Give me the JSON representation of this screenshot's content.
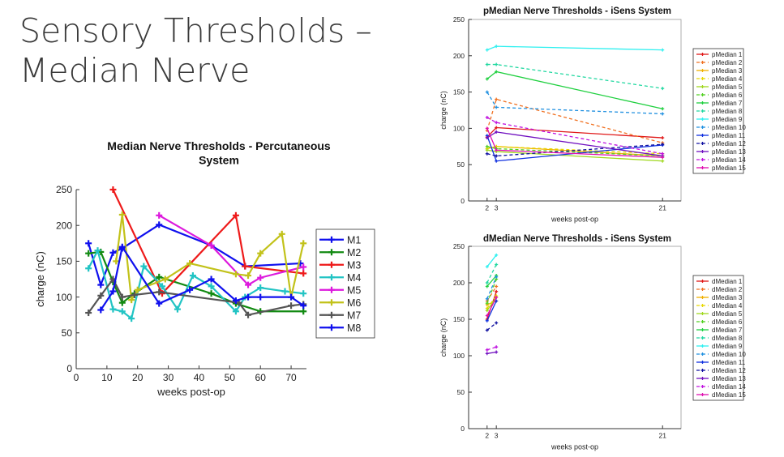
{
  "slide": {
    "title_line1": "Sensory Thresholds –",
    "title_line2": "Median Nerve"
  },
  "chart_data": [
    {
      "type": "line",
      "title_lines": [
        "Median Nerve Thresholds - Percutaneous",
        "System"
      ],
      "xlabel": "weeks post-op",
      "ylabel": "charge (nC)",
      "xlim": [
        0,
        75
      ],
      "ylim": [
        0,
        250
      ],
      "xticks": [
        0,
        10,
        20,
        30,
        40,
        50,
        60,
        70
      ],
      "yticks": [
        0,
        50,
        100,
        150,
        200,
        250
      ],
      "grid": false,
      "legend_position": "right",
      "series": [
        {
          "name": "M1",
          "color": "#1010ee",
          "dash": "solid",
          "x": [
            4,
            8,
            12,
            15,
            27,
            44,
            55,
            73
          ],
          "y": [
            175,
            117,
            162,
            168,
            201,
            172,
            143,
            147
          ]
        },
        {
          "name": "M2",
          "color": "#128a12",
          "dash": "solid",
          "x": [
            4,
            8,
            12,
            15,
            19,
            27,
            44,
            52,
            60,
            74
          ],
          "y": [
            161,
            163,
            121,
            92,
            105,
            128,
            105,
            91,
            80,
            80
          ]
        },
        {
          "name": "M3",
          "color": "#ee1a1a",
          "dash": "solid",
          "x": [
            12,
            28,
            52,
            55,
            74
          ],
          "y": [
            250,
            105,
            214,
            143,
            133
          ]
        },
        {
          "name": "M4",
          "color": "#22c4c4",
          "dash": "solid",
          "x": [
            4,
            7,
            12,
            15,
            18,
            22,
            28,
            33,
            38,
            44,
            52,
            55,
            60,
            68,
            74
          ],
          "y": [
            140,
            165,
            83,
            80,
            70,
            143,
            115,
            83,
            130,
            115,
            80,
            100,
            113,
            108,
            105
          ]
        },
        {
          "name": "M5",
          "color": "#dd1add",
          "dash": "solid",
          "x": [
            27,
            44,
            56,
            60,
            74
          ],
          "y": [
            214,
            172,
            117,
            127,
            142
          ]
        },
        {
          "name": "M6",
          "color": "#c2c21a",
          "dash": "solid",
          "x": [
            13,
            15,
            18,
            20,
            29,
            37,
            52,
            56,
            60,
            67,
            70,
            74
          ],
          "y": [
            150,
            215,
            96,
            110,
            125,
            147,
            132,
            130,
            161,
            188,
            100,
            175
          ]
        },
        {
          "name": "M7",
          "color": "#555555",
          "dash": "solid",
          "x": [
            4,
            8,
            12,
            15,
            19,
            27,
            53,
            56,
            70,
            74
          ],
          "y": [
            78,
            102,
            125,
            100,
            103,
            107,
            92,
            75,
            88,
            90
          ]
        },
        {
          "name": "M8",
          "color": "#1010ee",
          "dash": "solid",
          "x": [
            8,
            12,
            15,
            27,
            37,
            44,
            52,
            56,
            60,
            70,
            74
          ],
          "y": [
            82,
            108,
            170,
            91,
            110,
            125,
            95,
            100,
            100,
            100,
            88
          ]
        }
      ]
    },
    {
      "type": "line",
      "title": "pMedian Nerve Thresholds - iSens System",
      "xlabel": "weeks post-op",
      "ylabel": "charge (nC)",
      "xlim": [
        0,
        23
      ],
      "ylim": [
        0,
        250
      ],
      "xticks": [
        2,
        3,
        21
      ],
      "yticks": [
        0,
        50,
        100,
        150,
        200,
        250
      ],
      "grid": false,
      "legend_position": "right",
      "series": [
        {
          "name": "pMedian 1",
          "color": "#e01818",
          "dash": "solid",
          "x": [
            2,
            3,
            21
          ],
          "y": [
            88,
            101,
            87
          ]
        },
        {
          "name": "pMedian 2",
          "color": "#f07020",
          "dash": "dashed",
          "x": [
            2,
            3,
            21
          ],
          "y": [
            97,
            140,
            80
          ]
        },
        {
          "name": "pMedian 3",
          "color": "#f0b000",
          "dash": "solid",
          "x": [
            2,
            3,
            21
          ],
          "y": [
            72,
            75,
            62
          ]
        },
        {
          "name": "pMedian 4",
          "color": "#e8d800",
          "dash": "dashed",
          "x": [
            2,
            3,
            21
          ],
          "y": [
            72,
            75,
            65
          ]
        },
        {
          "name": "pMedian 5",
          "color": "#a0d820",
          "dash": "solid",
          "x": [
            2,
            3,
            21
          ],
          "y": [
            70,
            68,
            55
          ]
        },
        {
          "name": "pMedian 6",
          "color": "#50d020",
          "dash": "dashed",
          "x": [
            2,
            3,
            21
          ],
          "y": [
            75,
            72,
            62
          ]
        },
        {
          "name": "pMedian 7",
          "color": "#20d040",
          "dash": "solid",
          "x": [
            2,
            3,
            21
          ],
          "y": [
            168,
            178,
            127
          ]
        },
        {
          "name": "pMedian 8",
          "color": "#20d8a0",
          "dash": "dashed",
          "x": [
            2,
            3,
            21
          ],
          "y": [
            188,
            188,
            155
          ]
        },
        {
          "name": "pMedian 9",
          "color": "#30f0f0",
          "dash": "solid",
          "x": [
            2,
            3,
            21
          ],
          "y": [
            208,
            213,
            208
          ]
        },
        {
          "name": "pMedian 10",
          "color": "#2090e0",
          "dash": "dashed",
          "x": [
            2,
            3,
            21
          ],
          "y": [
            150,
            129,
            120
          ]
        },
        {
          "name": "pMedian 11",
          "color": "#1030e0",
          "dash": "solid",
          "x": [
            2,
            3,
            21
          ],
          "y": [
            90,
            55,
            77
          ]
        },
        {
          "name": "pMedian 12",
          "color": "#1010a0",
          "dash": "dashed",
          "x": [
            2,
            3,
            21
          ],
          "y": [
            65,
            62,
            78
          ]
        },
        {
          "name": "pMedian 13",
          "color": "#7010c0",
          "dash": "solid",
          "x": [
            2,
            3,
            21
          ],
          "y": [
            87,
            95,
            62
          ]
        },
        {
          "name": "pMedian 14",
          "color": "#c010e0",
          "dash": "dashed",
          "x": [
            2,
            3,
            21
          ],
          "y": [
            115,
            108,
            65
          ]
        },
        {
          "name": "pMedian 15",
          "color": "#e010b0",
          "dash": "solid",
          "x": [
            2,
            3,
            21
          ],
          "y": [
            100,
            70,
            60
          ]
        }
      ]
    },
    {
      "type": "line",
      "title": "dMedian Nerve Thresholds - iSens System",
      "xlabel": "weeks post-op",
      "ylabel": "charge (nC)",
      "xlim": [
        0,
        23
      ],
      "ylim": [
        0,
        250
      ],
      "xticks": [
        2,
        3,
        21
      ],
      "yticks": [
        0,
        50,
        100,
        150,
        200,
        250
      ],
      "grid": false,
      "legend_position": "right",
      "series": [
        {
          "name": "dMedian 1",
          "color": "#e01818",
          "dash": "solid",
          "x": [
            2,
            3
          ],
          "y": [
            150,
            188
          ]
        },
        {
          "name": "dMedian 2",
          "color": "#f07020",
          "dash": "dashed",
          "x": [
            2,
            3
          ],
          "y": [
            175,
            195
          ]
        },
        {
          "name": "dMedian 3",
          "color": "#f0b000",
          "dash": "solid",
          "x": [
            2,
            3
          ],
          "y": [
            170,
            175
          ]
        },
        {
          "name": "dMedian 4",
          "color": "#e8d800",
          "dash": "dashed",
          "x": [
            2,
            3
          ],
          "y": [
            165,
            182
          ]
        },
        {
          "name": "dMedian 5",
          "color": "#a0d820",
          "dash": "solid",
          "x": [
            2,
            3
          ],
          "y": [
            162,
            180
          ]
        },
        {
          "name": "dMedian 6",
          "color": "#50d020",
          "dash": "dashed",
          "x": [
            2,
            3
          ],
          "y": [
            172,
            205
          ]
        },
        {
          "name": "dMedian 7",
          "color": "#20d040",
          "dash": "solid",
          "x": [
            2,
            3
          ],
          "y": [
            195,
            210
          ]
        },
        {
          "name": "dMedian 8",
          "color": "#20d8a0",
          "dash": "dashed",
          "x": [
            2,
            3
          ],
          "y": [
            200,
            225
          ]
        },
        {
          "name": "dMedian 9",
          "color": "#30f0f0",
          "dash": "solid",
          "x": [
            2,
            3
          ],
          "y": [
            222,
            238
          ]
        },
        {
          "name": "dMedian 10",
          "color": "#2090e0",
          "dash": "dashed",
          "x": [
            2,
            3
          ],
          "y": [
            178,
            208
          ]
        },
        {
          "name": "dMedian 11",
          "color": "#1030e0",
          "dash": "solid",
          "x": [
            2,
            3
          ],
          "y": [
            148,
            175
          ]
        },
        {
          "name": "dMedian 12",
          "color": "#1010a0",
          "dash": "dashed",
          "x": [
            2,
            3
          ],
          "y": [
            135,
            145
          ]
        },
        {
          "name": "dMedian 13",
          "color": "#7010c0",
          "dash": "solid",
          "x": [
            2,
            3
          ],
          "y": [
            103,
            105
          ]
        },
        {
          "name": "dMedian 14",
          "color": "#c010e0",
          "dash": "dashed",
          "x": [
            2,
            3
          ],
          "y": [
            108,
            112
          ]
        },
        {
          "name": "dMedian 15",
          "color": "#e010b0",
          "dash": "solid",
          "x": [
            2,
            3
          ],
          "y": [
            155,
            180
          ]
        }
      ]
    }
  ]
}
